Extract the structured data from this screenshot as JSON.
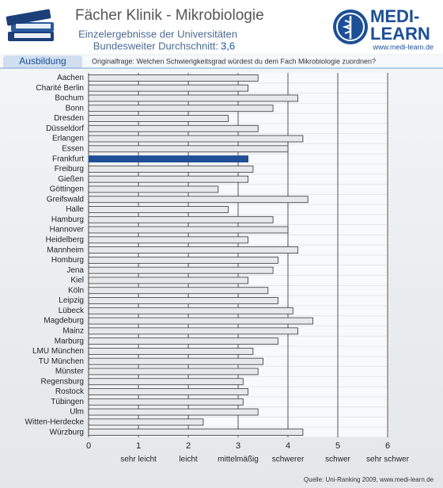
{
  "section": "Ausbildung",
  "logo": {
    "line1": "MEDI-",
    "line2": "LEARN",
    "url": "www.medi-learn.de"
  },
  "chart_data": {
    "type": "hbar",
    "title": "Fächer Klinik - Mikrobiologie",
    "subtitle": "Einzelergebnisse der Universitäten",
    "average_text": "Bundesweiter Durchschnitt:",
    "average_label": "3,6",
    "question": "Originalfrage: Welchen Schwierigkeitsgrad würdest du dem Fach Mikrobiologie zuordnen?",
    "source": "Quelle: Uni-Ranking 2009, www.medi-learn.de",
    "categories": [
      "Aachen",
      "Charité Berlin",
      "Bochum",
      "Bonn",
      "Dresden",
      "Düsseldorf",
      "Erlangen",
      "Essen",
      "Frankfurt",
      "Freiburg",
      "Gießen",
      "Göttingen",
      "Greifswald",
      "Halle",
      "Hamburg",
      "Hannover",
      "Heidelberg",
      "Mannheim",
      "Homburg",
      "Jena",
      "Kiel",
      "Köln",
      "Leipzig",
      "Lübeck",
      "Magdeburg",
      "Mainz",
      "Marburg",
      "LMU München",
      "TU München",
      "Münster",
      "Regensburg",
      "Rostock",
      "Tübingen",
      "Ulm",
      "Witten-Herdecke",
      "Würzburg"
    ],
    "values": [
      3.4,
      3.2,
      4.2,
      3.7,
      2.8,
      3.4,
      4.3,
      4.0,
      3.2,
      3.3,
      3.2,
      2.6,
      4.4,
      2.8,
      3.7,
      4.0,
      3.2,
      4.2,
      3.8,
      3.7,
      3.2,
      3.6,
      3.8,
      4.1,
      4.5,
      4.2,
      3.8,
      3.3,
      3.5,
      3.4,
      3.1,
      3.2,
      3.1,
      3.4,
      2.3,
      4.3
    ],
    "color": "#e6e8ea",
    "highlight": {
      "category": "Frankfurt",
      "color": "#1f4e96"
    },
    "xlim": [
      0,
      6
    ],
    "xticks": [
      0,
      1,
      2,
      3,
      4,
      5,
      6
    ],
    "scale_labels": [
      {
        "value": 1,
        "label": "sehr leicht"
      },
      {
        "value": 2,
        "label": "leicht"
      },
      {
        "value": 3,
        "label": "mittelmäßig"
      },
      {
        "value": 4,
        "label": "schwerer"
      },
      {
        "value": 5,
        "label": "schwer"
      },
      {
        "value": 6,
        "label": "sehr schwer"
      }
    ],
    "grid": true
  }
}
